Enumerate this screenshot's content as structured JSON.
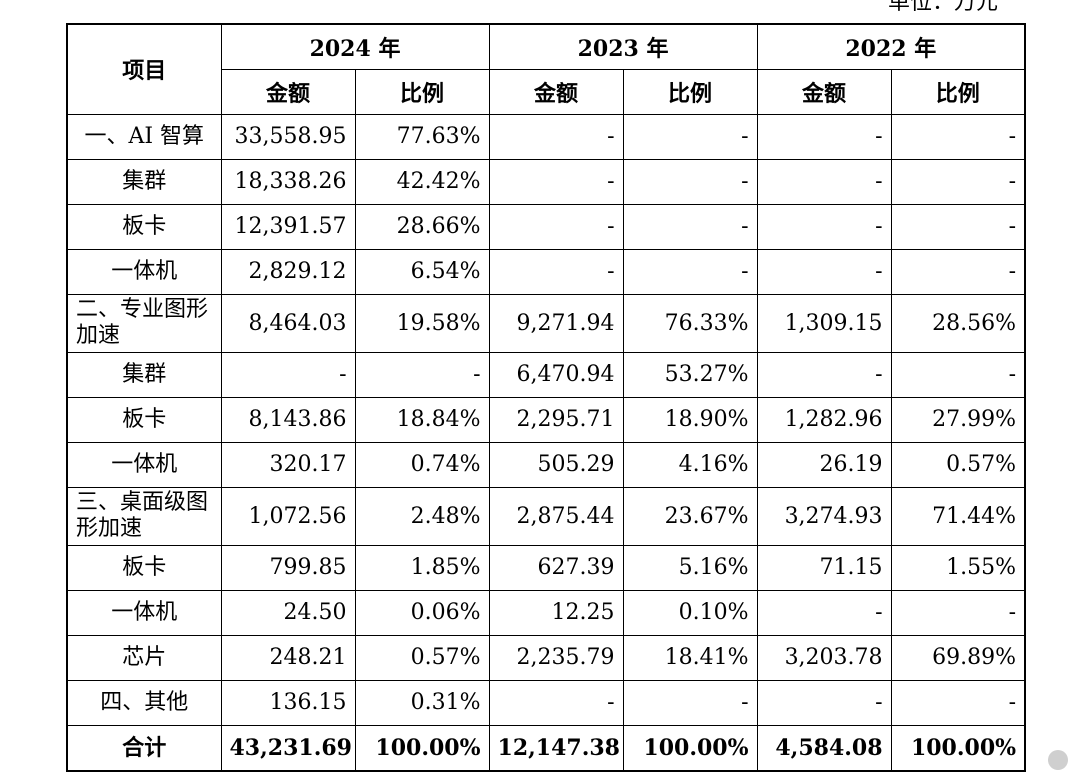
{
  "unit_label": "单位：万元",
  "header": {
    "item": "项目",
    "years": [
      "2024 年",
      "2023 年",
      "2022 年"
    ],
    "amount": "金额",
    "ratio": "比例"
  },
  "rows": [
    {
      "label": "一、AI 智算",
      "v": [
        "33,558.95",
        "77.63%",
        "-",
        "-",
        "-",
        "-"
      ]
    },
    {
      "label": "集群",
      "v": [
        "18,338.26",
        "42.42%",
        "-",
        "-",
        "-",
        "-"
      ]
    },
    {
      "label": "板卡",
      "v": [
        "12,391.57",
        "28.66%",
        "-",
        "-",
        "-",
        "-"
      ]
    },
    {
      "label": "一体机",
      "v": [
        "2,829.12",
        "6.54%",
        "-",
        "-",
        "-",
        "-"
      ]
    },
    {
      "label": "二、专业图形加速",
      "v": [
        "8,464.03",
        "19.58%",
        "9,271.94",
        "76.33%",
        "1,309.15",
        "28.56%"
      ]
    },
    {
      "label": "集群",
      "v": [
        "-",
        "-",
        "6,470.94",
        "53.27%",
        "-",
        "-"
      ]
    },
    {
      "label": "板卡",
      "v": [
        "8,143.86",
        "18.84%",
        "2,295.71",
        "18.90%",
        "1,282.96",
        "27.99%"
      ]
    },
    {
      "label": "一体机",
      "v": [
        "320.17",
        "0.74%",
        "505.29",
        "4.16%",
        "26.19",
        "0.57%"
      ]
    },
    {
      "label": "三、桌面级图形加速",
      "v": [
        "1,072.56",
        "2.48%",
        "2,875.44",
        "23.67%",
        "3,274.93",
        "71.44%"
      ]
    },
    {
      "label": "板卡",
      "v": [
        "799.85",
        "1.85%",
        "627.39",
        "5.16%",
        "71.15",
        "1.55%"
      ]
    },
    {
      "label": "一体机",
      "v": [
        "24.50",
        "0.06%",
        "12.25",
        "0.10%",
        "-",
        "-"
      ]
    },
    {
      "label": "芯片",
      "v": [
        "248.21",
        "0.57%",
        "2,235.79",
        "18.41%",
        "3,203.78",
        "69.89%"
      ]
    },
    {
      "label": "四、其他",
      "v": [
        "136.15",
        "0.31%",
        "-",
        "-",
        "-",
        "-"
      ]
    }
  ],
  "total": {
    "label": "合计",
    "v": [
      "43,231.69",
      "100.00%",
      "12,147.38",
      "100.00%",
      "4,584.08",
      "100.00%"
    ]
  }
}
